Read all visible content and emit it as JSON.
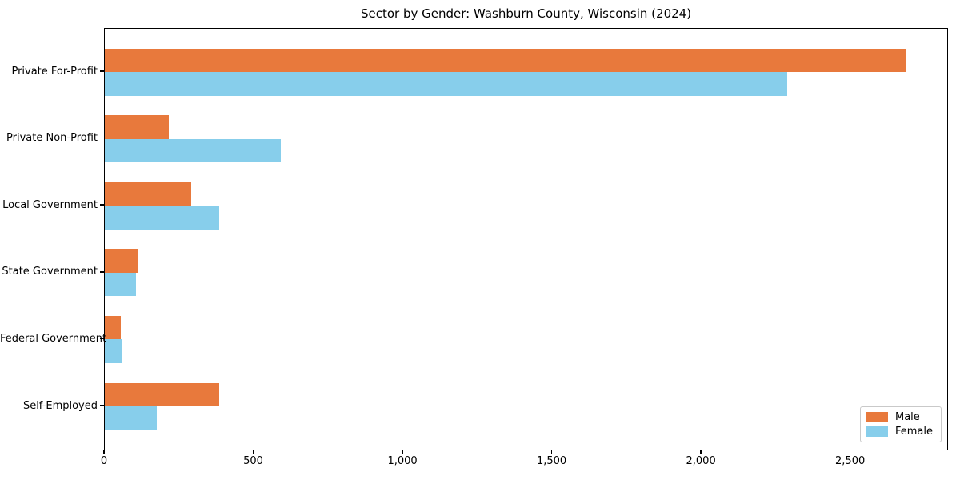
{
  "chart_data": {
    "type": "bar",
    "orientation": "horizontal",
    "title": "Sector by Gender: Washburn County, Wisconsin (2024)",
    "categories": [
      "Private For-Profit",
      "Private Non-Profit",
      "Local Government",
      "State Government",
      "Federal Government",
      "Self-Employed"
    ],
    "series": [
      {
        "name": "Male",
        "color": "#e8793c",
        "values": [
          2690,
          215,
          290,
          110,
          55,
          385
        ]
      },
      {
        "name": "Female",
        "color": "#87ceeb",
        "values": [
          2290,
          590,
          385,
          105,
          60,
          175
        ]
      }
    ],
    "xlabel": "",
    "ylabel": "",
    "xlim": [
      0,
      2828
    ],
    "x_ticks": [
      0,
      500,
      1000,
      1500,
      2000,
      2500
    ],
    "x_tick_labels": [
      "0",
      "500",
      "1,000",
      "1,500",
      "2,000",
      "2,500"
    ],
    "grid": false,
    "legend": {
      "position": "lower right",
      "entries": [
        "Male",
        "Female"
      ]
    },
    "colors": {
      "male": "#e8793c",
      "female": "#87ceeb",
      "frame": "#000000",
      "background": "#ffffff"
    }
  }
}
